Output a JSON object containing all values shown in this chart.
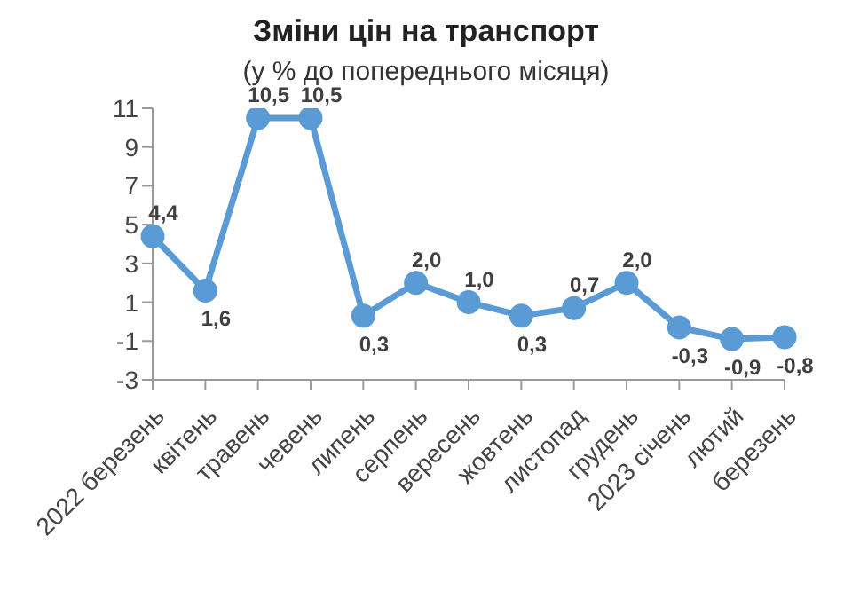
{
  "chart_data": {
    "type": "line",
    "title": "Зміни цін на транспорт",
    "subtitle": "(у % до попереднього місяця)",
    "categories": [
      "2022 березень",
      "квітень",
      "травень",
      "чевень",
      "липень",
      "серпень",
      "вересень",
      "жовтень",
      "листопад",
      "грудень",
      "2023 січень",
      "лютий",
      "березень"
    ],
    "series": [
      {
        "color": "#5b9bd5",
        "values": [
          4.4,
          1.6,
          10.5,
          10.5,
          0.3,
          2.0,
          1.0,
          0.3,
          0.7,
          2.0,
          -0.3,
          -0.9,
          -0.8
        ],
        "value_labels": [
          "4,4",
          "1,6",
          "10,5",
          "10,5",
          "0,3",
          "2,0",
          "1,0",
          "0,3",
          "0,7",
          "2,0",
          "-0,3",
          "-0,9",
          "-0,8"
        ]
      }
    ],
    "ylim": [
      -3,
      11
    ],
    "yticks": [
      -3,
      -1,
      1,
      3,
      5,
      7,
      9,
      11
    ],
    "marker": "circle",
    "line_style": "solid"
  }
}
